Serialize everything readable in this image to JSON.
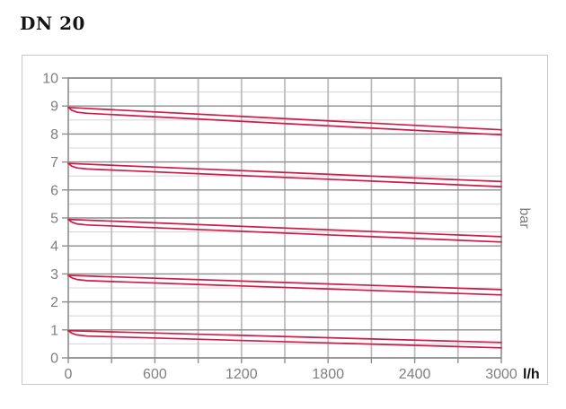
{
  "title": "DN 20",
  "colors": {
    "accent_red": "#d11a47",
    "grid_major": "#8d8d8d",
    "grid_minor": "#d8d8d8",
    "grid_vertical": "#bdbdbd",
    "axis_text": "#7e7e7e",
    "frame_border": "#c8c8c8",
    "unit_text": "#111111"
  },
  "chart_data": {
    "type": "line",
    "title": "DN 20",
    "xlabel": "l/h",
    "ylabel": "bar",
    "xlim": [
      0,
      3000
    ],
    "ylim": [
      0,
      10
    ],
    "x_grid_step": 300,
    "y_grid_minor_step": 0.5,
    "x_labeled_ticks": [
      0,
      600,
      1200,
      1800,
      2400,
      3000
    ],
    "y_labeled_ticks": [
      0,
      1,
      2,
      3,
      4,
      5,
      6,
      7,
      8,
      9,
      10
    ],
    "grid": true,
    "legend": false,
    "series": [
      {
        "name": "set-9-bar",
        "set_pressure": 9,
        "upper": [
          [
            0,
            8.95
          ],
          [
            3000,
            8.15
          ]
        ],
        "lower": [
          [
            0,
            8.95
          ],
          [
            25,
            8.85
          ],
          [
            60,
            8.78
          ],
          [
            130,
            8.74
          ],
          [
            3000,
            7.97
          ]
        ]
      },
      {
        "name": "set-7-bar",
        "set_pressure": 7,
        "upper": [
          [
            0,
            6.95
          ],
          [
            3000,
            6.3
          ]
        ],
        "lower": [
          [
            0,
            6.95
          ],
          [
            25,
            6.85
          ],
          [
            60,
            6.79
          ],
          [
            130,
            6.75
          ],
          [
            3000,
            6.12
          ]
        ]
      },
      {
        "name": "set-5-bar",
        "set_pressure": 5,
        "upper": [
          [
            0,
            4.95
          ],
          [
            3000,
            4.33
          ]
        ],
        "lower": [
          [
            0,
            4.95
          ],
          [
            25,
            4.85
          ],
          [
            60,
            4.79
          ],
          [
            130,
            4.75
          ],
          [
            3000,
            4.14
          ]
        ]
      },
      {
        "name": "set-3-bar",
        "set_pressure": 3,
        "upper": [
          [
            0,
            2.95
          ],
          [
            3000,
            2.44
          ]
        ],
        "lower": [
          [
            0,
            2.95
          ],
          [
            25,
            2.86
          ],
          [
            60,
            2.8
          ],
          [
            130,
            2.76
          ],
          [
            3000,
            2.25
          ]
        ]
      },
      {
        "name": "set-1-bar",
        "set_pressure": 1,
        "upper": [
          [
            0,
            0.97
          ],
          [
            3000,
            0.55
          ]
        ],
        "lower": [
          [
            0,
            0.97
          ],
          [
            25,
            0.88
          ],
          [
            60,
            0.82
          ],
          [
            130,
            0.78
          ],
          [
            3000,
            0.36
          ]
        ]
      }
    ]
  }
}
